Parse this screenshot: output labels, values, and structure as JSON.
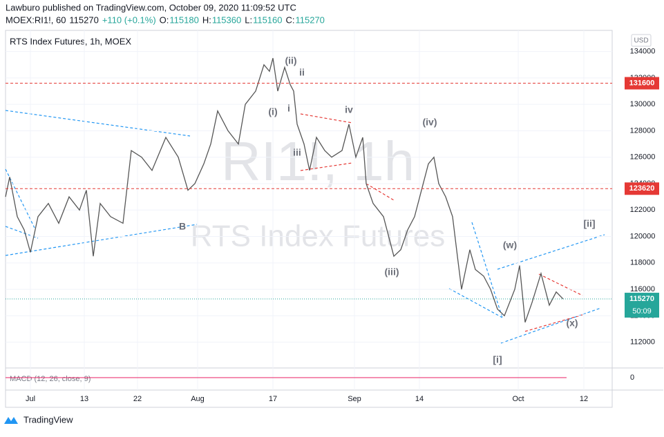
{
  "header": {
    "publisher": "Lawburo published on TradingView.com, October 09, 2020 11:09:52 UTC",
    "symbol": "MOEX:RI1!, 60",
    "last": "115270",
    "change": "+110 (+0.1%)",
    "ohlc": [
      {
        "label": "O:",
        "value": "115180"
      },
      {
        "label": "H:",
        "value": "115360"
      },
      {
        "label": "L:",
        "value": "115160"
      },
      {
        "label": "C:",
        "value": "115270"
      }
    ]
  },
  "chart_data": {
    "type": "line",
    "title": "RTS Index Futures, 1h, MOEX",
    "watermark": [
      "RI1!, 1h",
      "RTS Index Futures"
    ],
    "currency": "USD",
    "color": "#555555",
    "x": [
      8,
      14,
      25,
      35,
      44,
      55,
      70,
      85,
      100,
      115,
      125,
      135,
      145,
      160,
      178,
      190,
      205,
      220,
      240,
      258,
      272,
      282,
      295,
      305,
      315,
      330,
      345,
      355,
      370,
      382,
      390,
      395,
      402,
      412,
      420,
      425,
      430,
      440,
      448,
      458,
      470,
      480,
      495,
      505,
      515,
      525,
      530,
      540,
      555,
      570,
      580,
      590,
      600,
      610,
      620,
      628,
      635,
      645,
      655,
      662,
      668,
      680,
      688,
      700,
      710,
      720,
      730,
      745,
      752,
      760,
      770,
      783,
      795,
      805,
      815
    ],
    "values": [
      123000,
      124500,
      121500,
      120500,
      118800,
      121500,
      122500,
      121000,
      123000,
      122000,
      123500,
      118500,
      122500,
      121500,
      121000,
      126500,
      126000,
      125000,
      127500,
      126000,
      123500,
      124000,
      125500,
      127000,
      129500,
      128000,
      127000,
      130000,
      131000,
      133000,
      132500,
      133500,
      131000,
      132800,
      131500,
      131000,
      128500,
      127000,
      125000,
      127500,
      126500,
      126000,
      126500,
      128500,
      126000,
      127500,
      124000,
      122500,
      121500,
      118500,
      119000,
      120500,
      121500,
      123500,
      125500,
      126000,
      124000,
      123000,
      121500,
      118500,
      116000,
      119000,
      117500,
      117000,
      116000,
      114500,
      114000,
      116000,
      117800,
      113500,
      115000,
      117200,
      114800,
      115800,
      115270
    ],
    "xlim": [
      8,
      885
    ],
    "xticks": [
      {
        "value": 44,
        "label": "Jul"
      },
      {
        "value": 122,
        "label": "13"
      },
      {
        "value": 199,
        "label": "22"
      },
      {
        "value": 286,
        "label": "Aug"
      },
      {
        "value": 395,
        "label": "17"
      },
      {
        "value": 513,
        "label": "Sep"
      },
      {
        "value": 607,
        "label": "14"
      },
      {
        "value": 750,
        "label": "Oct"
      },
      {
        "value": 845,
        "label": "12"
      }
    ],
    "ylim": [
      110100,
      135600
    ],
    "yticks": [
      112000,
      114000,
      116000,
      118000,
      120000,
      122000,
      124000,
      126000,
      128000,
      130000,
      132000,
      134000
    ],
    "grid": true,
    "levels": [
      131600,
      123620
    ],
    "level_color": "#e53935",
    "last_price": 115270,
    "countdown": "50:09",
    "last_color": "#26a69a",
    "annotations": [
      "(ii)",
      "ii",
      "(i)",
      "i",
      "iii",
      "iv",
      "(iv)",
      "(iii)",
      "(w)",
      "(x)",
      "[i]",
      "[ii]",
      "B"
    ],
    "indicator": {
      "label": "MACD (12, 26, close, 9)",
      "yticks": [
        0
      ]
    }
  },
  "footer": {
    "brand": "TradingView"
  }
}
